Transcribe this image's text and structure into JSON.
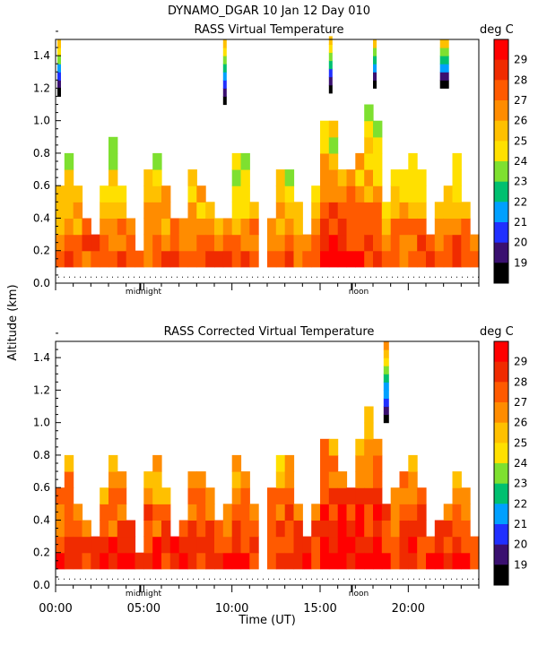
{
  "header": {
    "title": "DYNAMO_DGAR  10 Jan 12 Day 010"
  },
  "y_axis_label": "Altitude (km)",
  "x_axis_label": "Time (UT)",
  "colorbar": {
    "unit": "deg C",
    "levels": [
      "29",
      "28",
      "27",
      "26",
      "25",
      "24",
      "23",
      "22",
      "21",
      "20",
      "19"
    ],
    "colors": [
      "#ff0000",
      "#f02b00",
      "#ff5a00",
      "#ff8c00",
      "#ffc000",
      "#ffe000",
      "#7ee030",
      "#00c070",
      "#00a0ff",
      "#2030ff",
      "#3a1070",
      "#000000"
    ]
  },
  "chart_data": [
    {
      "type": "heatmap",
      "title": "RASS Virtual Temperature",
      "xlabel": "",
      "ylabel": "Altitude (km)",
      "xlim": [
        0,
        24
      ],
      "ylim": [
        0,
        1.5
      ],
      "yticks": [
        "0.0",
        "0.2",
        "0.4",
        "0.6",
        "0.8",
        "1.0",
        "1.2",
        "1.4"
      ],
      "xticks": [],
      "markers": [
        "midnight",
        "noon"
      ],
      "value_unit": "deg C",
      "field_summary": {
        "surface_mean_deg_c": 28,
        "top_of_profile_deg_c": 25,
        "height_range_km": [
          0.1,
          1.5
        ]
      }
    },
    {
      "type": "heatmap",
      "title": "RASS Corrected Virtual Temperature",
      "xlabel": "Time (UT)",
      "ylabel": "Altitude (km)",
      "xlim": [
        0,
        24
      ],
      "ylim": [
        0,
        1.5
      ],
      "yticks": [
        "0.0",
        "0.2",
        "0.4",
        "0.6",
        "0.8",
        "1.0",
        "1.2",
        "1.4"
      ],
      "xticks": [
        "00:00",
        "05:00",
        "10:00",
        "15:00",
        "20:00"
      ],
      "markers": [
        "midnight",
        "noon"
      ],
      "value_unit": "deg C",
      "field_summary": {
        "surface_mean_deg_c": 29,
        "top_of_profile_deg_c": 26,
        "height_range_km": [
          0.1,
          1.5
        ]
      }
    }
  ]
}
